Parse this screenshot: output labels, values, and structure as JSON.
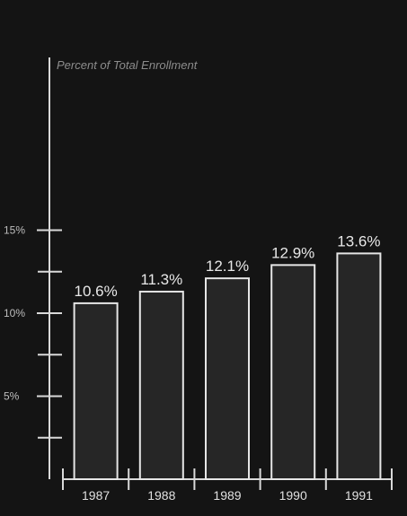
{
  "chart_data": {
    "type": "bar",
    "title": "",
    "ylabel": "Percent of Total Enrollment",
    "xlabel": "",
    "categories": [
      "1987",
      "1988",
      "1989",
      "1990",
      "1991"
    ],
    "values": [
      10.6,
      11.3,
      12.1,
      12.9,
      13.6
    ],
    "data_labels": [
      "10.6%",
      "11.3%",
      "12.1%",
      "12.9%",
      "13.6%"
    ],
    "ylim": [
      0,
      16
    ],
    "y_ticks": [
      5,
      10,
      15
    ],
    "y_tick_labels": [
      "5%",
      "10%",
      "15%"
    ],
    "y_minor_step": 2.5,
    "grid": false,
    "legend": "none",
    "colors": {
      "background": "#141414",
      "bar_fill": "#262626",
      "bar_stroke": "#e6e6e6",
      "axis": "#d9d9d9"
    }
  }
}
